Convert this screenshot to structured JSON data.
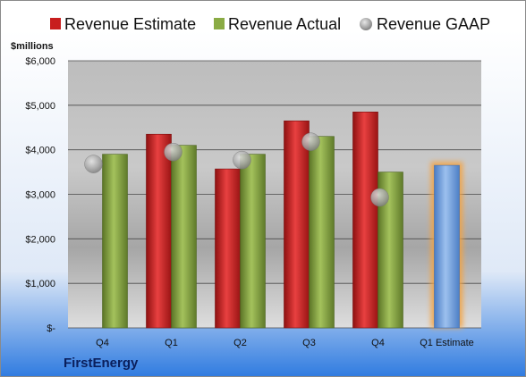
{
  "chart_data": {
    "type": "bar",
    "company": "FirstEnergy",
    "unit_label": "$millions",
    "categories": [
      "Q4",
      "Q1",
      "Q2",
      "Q3",
      "Q4",
      "Q1 Estimate"
    ],
    "series": [
      {
        "name": "Revenue Estimate",
        "kind": "bar",
        "color": "#cc1f1f",
        "values": [
          null,
          4350,
          3570,
          4650,
          4850,
          3650
        ]
      },
      {
        "name": "Revenue Actual",
        "kind": "bar",
        "color": "#7e9c3c",
        "values": [
          3900,
          4100,
          3900,
          4300,
          3500,
          null
        ]
      },
      {
        "name": "Revenue GAAP",
        "kind": "marker",
        "color": "#9a9a9a",
        "values": [
          3680,
          3950,
          3770,
          4180,
          2930,
          null
        ]
      }
    ],
    "estimate_color": "#6d9bd6",
    "estimate_glow": "#f5a341",
    "ylim": [
      0,
      6000
    ],
    "yticks": [
      0,
      1000,
      2000,
      3000,
      4000,
      5000,
      6000
    ],
    "ytick_labels": [
      "$-",
      "$1,000",
      "$2,000",
      "$3,000",
      "$4,000",
      "$5,000",
      "$6,000"
    ],
    "legend_position": "top",
    "grid": true
  }
}
